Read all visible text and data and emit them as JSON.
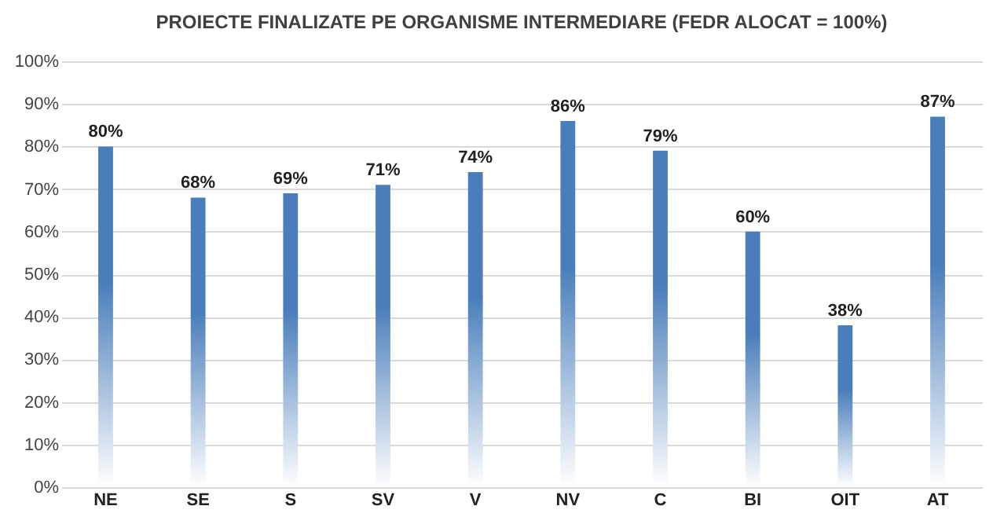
{
  "chart_data": {
    "type": "bar",
    "title": "PROIECTE FINALIZATE PE ORGANISME INTERMEDIARE (FEDR ALOCAT = 100%)",
    "categories": [
      "NE",
      "SE",
      "S",
      "SV",
      "V",
      "NV",
      "C",
      "BI",
      "OIT",
      "AT"
    ],
    "values": [
      80,
      68,
      69,
      71,
      74,
      86,
      79,
      60,
      38,
      87
    ],
    "value_labels": [
      "80%",
      "68%",
      "69%",
      "71%",
      "74%",
      "86%",
      "79%",
      "60%",
      "38%",
      "87%"
    ],
    "color": "#4a7ebb",
    "ylim": [
      0,
      100
    ],
    "yticks": [
      {
        "value": 0,
        "label": "0%"
      },
      {
        "value": 10,
        "label": "10%"
      },
      {
        "value": 20,
        "label": "20%"
      },
      {
        "value": 30,
        "label": "30%"
      },
      {
        "value": 40,
        "label": "40%"
      },
      {
        "value": 50,
        "label": "50%"
      },
      {
        "value": 60,
        "label": "60%"
      },
      {
        "value": 70,
        "label": "70%"
      },
      {
        "value": 80,
        "label": "80%"
      },
      {
        "value": 90,
        "label": "90%"
      },
      {
        "value": 100,
        "label": "100%"
      }
    ],
    "grid": "y"
  }
}
